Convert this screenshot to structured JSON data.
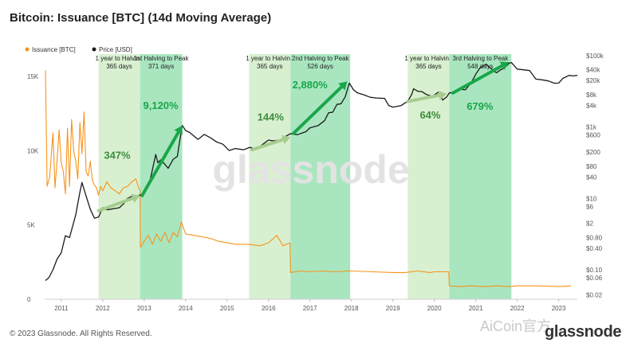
{
  "page": {
    "title": "Bitcoin: Issuance [BTC] (14d Moving Average)",
    "footer": "© 2023 Glassnode. All Rights Reserved.",
    "logo": "glassnode",
    "watermark": "glassnode",
    "corner_watermark": "AiCoin官方"
  },
  "colors": {
    "issuance": "#f7931a",
    "price": "#1a1a1a",
    "pre_halving_band": "#d8f0d0",
    "post_halving_band": "#a9e6c0",
    "arrow_light": "#a6cc8f",
    "arrow_dark": "#1aa64a",
    "pct_light": "#3c8c3c",
    "pct_dark": "#1aa64a"
  },
  "chart_data": {
    "type": "line",
    "legend": [
      {
        "label": "Issuance [BTC]",
        "color": "#f7931a"
      },
      {
        "label": "Price [USD]",
        "color": "#1a1a1a"
      }
    ],
    "legend_position": "top-left",
    "xlim": [
      2010.6,
      2023.45
    ],
    "x_ticks": [
      "2011",
      "2012",
      "2013",
      "2014",
      "2015",
      "2016",
      "2017",
      "2018",
      "2019",
      "2020",
      "2021",
      "2022",
      "2023"
    ],
    "y_left": {
      "label": "",
      "ylim": [
        0,
        16500
      ],
      "ticks": [
        0,
        5000,
        10000,
        15000
      ],
      "tick_labels": [
        "0",
        "5K",
        "10K",
        "15K"
      ]
    },
    "y_right": {
      "label": "",
      "scale": "log",
      "ylim": [
        0.015,
        110000
      ],
      "ticks": [
        100000,
        40000,
        20000,
        8000,
        4000,
        1000,
        600,
        200,
        80,
        40,
        10,
        6,
        2,
        0.8,
        0.4,
        0.1,
        0.06,
        0.02
      ],
      "tick_labels": [
        "$100k",
        "$40k",
        "$20k",
        "$8k",
        "$4k",
        "$1k",
        "$600",
        "$200",
        "$80",
        "$40",
        "$10",
        "$6",
        "$2",
        "$0.80",
        "$0.40",
        "$0.10",
        "$0.06",
        "$0.02"
      ]
    },
    "grid": false,
    "bands": [
      {
        "x0": 2011.9,
        "x1": 2012.9,
        "kind": "pre",
        "title": "1 year to Halving",
        "subtitle": "365 days"
      },
      {
        "x0": 2012.9,
        "x1": 2013.92,
        "kind": "post",
        "title": "1st Halving to Peak",
        "subtitle": "371 days"
      },
      {
        "x0": 2015.53,
        "x1": 2016.53,
        "kind": "pre",
        "title": "1 year to Halving",
        "subtitle": "365 days"
      },
      {
        "x0": 2016.53,
        "x1": 2017.97,
        "kind": "post",
        "title": "2nd Halving to Peak",
        "subtitle": "526 days"
      },
      {
        "x0": 2019.36,
        "x1": 2020.36,
        "kind": "pre",
        "title": "1 year to Halving",
        "subtitle": "365 days"
      },
      {
        "x0": 2020.36,
        "x1": 2021.86,
        "kind": "post",
        "title": "3rd Halving to Peak",
        "subtitle": "548 days"
      }
    ],
    "annotations": [
      {
        "text": "347%",
        "kind": "pre",
        "x": 2012.35,
        "price": 130
      },
      {
        "text": "9,120%",
        "kind": "post",
        "x": 2013.4,
        "price": 3200
      },
      {
        "text": "144%",
        "kind": "pre",
        "x": 2016.05,
        "price": 1500
      },
      {
        "text": "2,880%",
        "kind": "post",
        "x": 2017.0,
        "price": 12000
      },
      {
        "text": "64%",
        "kind": "pre",
        "x": 2019.9,
        "price": 1700
      },
      {
        "text": "679%",
        "kind": "post",
        "x": 2021.1,
        "price": 3000
      }
    ],
    "arrows": [
      {
        "kind": "pre",
        "x0": 2011.9,
        "p0": 4.5,
        "x1": 2012.9,
        "p1": 12
      },
      {
        "kind": "post",
        "x0": 2012.95,
        "p0": 12,
        "x1": 2013.92,
        "p1": 1100
      },
      {
        "kind": "pre",
        "x0": 2015.6,
        "p0": 230,
        "x1": 2016.53,
        "p1": 520
      },
      {
        "kind": "post",
        "x0": 2016.6,
        "p0": 660,
        "x1": 2017.9,
        "p1": 19000
      },
      {
        "kind": "pre",
        "x0": 2019.36,
        "p0": 5200,
        "x1": 2020.3,
        "p1": 8500
      },
      {
        "kind": "post",
        "x0": 2020.45,
        "p0": 9000,
        "x1": 2021.8,
        "p1": 66000
      }
    ],
    "series": [
      {
        "name": "Issuance [BTC]",
        "axis": "left",
        "points": [
          [
            2010.62,
            15400
          ],
          [
            2010.66,
            7600
          ],
          [
            2010.72,
            8200
          ],
          [
            2010.8,
            11200
          ],
          [
            2010.85,
            7500
          ],
          [
            2010.9,
            9400
          ],
          [
            2010.95,
            11400
          ],
          [
            2011.0,
            9200
          ],
          [
            2011.05,
            8600
          ],
          [
            2011.1,
            7100
          ],
          [
            2011.15,
            11500
          ],
          [
            2011.2,
            7600
          ],
          [
            2011.25,
            12100
          ],
          [
            2011.3,
            10000
          ],
          [
            2011.35,
            9300
          ],
          [
            2011.4,
            8100
          ],
          [
            2011.45,
            11900
          ],
          [
            2011.5,
            9800
          ],
          [
            2011.55,
            12600
          ],
          [
            2011.6,
            8600
          ],
          [
            2011.65,
            8300
          ],
          [
            2011.7,
            9300
          ],
          [
            2011.75,
            8000
          ],
          [
            2011.8,
            7700
          ],
          [
            2011.85,
            7500
          ],
          [
            2011.9,
            7000
          ],
          [
            2011.95,
            7600
          ],
          [
            2012.0,
            7300
          ],
          [
            2012.1,
            7900
          ],
          [
            2012.2,
            7500
          ],
          [
            2012.3,
            7300
          ],
          [
            2012.4,
            7100
          ],
          [
            2012.5,
            7500
          ],
          [
            2012.6,
            7600
          ],
          [
            2012.7,
            7900
          ],
          [
            2012.8,
            8100
          ],
          [
            2012.87,
            7500
          ],
          [
            2012.9,
            7300
          ],
          [
            2012.91,
            3500
          ],
          [
            2013.0,
            3900
          ],
          [
            2013.1,
            4300
          ],
          [
            2013.2,
            3700
          ],
          [
            2013.3,
            4400
          ],
          [
            2013.4,
            3900
          ],
          [
            2013.5,
            4500
          ],
          [
            2013.6,
            3800
          ],
          [
            2013.7,
            4500
          ],
          [
            2013.8,
            4200
          ],
          [
            2013.9,
            5200
          ],
          [
            2014.0,
            4400
          ],
          [
            2014.2,
            4300
          ],
          [
            2014.4,
            4200
          ],
          [
            2014.6,
            4100
          ],
          [
            2014.8,
            3900
          ],
          [
            2015.0,
            3800
          ],
          [
            2015.2,
            3700
          ],
          [
            2015.5,
            3700
          ],
          [
            2015.8,
            3600
          ],
          [
            2016.0,
            3800
          ],
          [
            2016.2,
            4300
          ],
          [
            2016.35,
            3600
          ],
          [
            2016.52,
            3800
          ],
          [
            2016.53,
            1800
          ],
          [
            2016.8,
            1900
          ],
          [
            2017.0,
            1850
          ],
          [
            2017.3,
            1900
          ],
          [
            2017.6,
            1850
          ],
          [
            2017.9,
            1900
          ],
          [
            2018.0,
            1900
          ],
          [
            2018.5,
            1850
          ],
          [
            2019.0,
            1800
          ],
          [
            2019.3,
            1800
          ],
          [
            2019.6,
            1900
          ],
          [
            2019.9,
            1800
          ],
          [
            2020.0,
            1850
          ],
          [
            2020.2,
            1850
          ],
          [
            2020.35,
            1850
          ],
          [
            2020.36,
            900
          ],
          [
            2020.6,
            850
          ],
          [
            2020.9,
            900
          ],
          [
            2021.2,
            850
          ],
          [
            2021.5,
            900
          ],
          [
            2021.8,
            850
          ],
          [
            2022.0,
            900
          ],
          [
            2022.5,
            900
          ],
          [
            2023.0,
            850
          ],
          [
            2023.3,
            900
          ]
        ]
      },
      {
        "name": "Price [USD]",
        "axis": "right",
        "points": [
          [
            2010.62,
            0.05
          ],
          [
            2010.7,
            0.06
          ],
          [
            2010.8,
            0.1
          ],
          [
            2010.9,
            0.2
          ],
          [
            2011.0,
            0.3
          ],
          [
            2011.1,
            0.9
          ],
          [
            2011.2,
            0.8
          ],
          [
            2011.35,
            3.5
          ],
          [
            2011.45,
            15
          ],
          [
            2011.5,
            28
          ],
          [
            2011.58,
            14
          ],
          [
            2011.7,
            5
          ],
          [
            2011.8,
            2.8
          ],
          [
            2011.9,
            3
          ],
          [
            2012.0,
            5.5
          ],
          [
            2012.1,
            4.8
          ],
          [
            2012.2,
            5
          ],
          [
            2012.4,
            5.5
          ],
          [
            2012.5,
            7
          ],
          [
            2012.6,
            10
          ],
          [
            2012.7,
            11.5
          ],
          [
            2012.8,
            11
          ],
          [
            2012.9,
            12.5
          ],
          [
            2013.0,
            13.5
          ],
          [
            2013.15,
            35
          ],
          [
            2013.28,
            170
          ],
          [
            2013.33,
            100
          ],
          [
            2013.4,
            120
          ],
          [
            2013.5,
            90
          ],
          [
            2013.58,
            70
          ],
          [
            2013.7,
            125
          ],
          [
            2013.8,
            150
          ],
          [
            2013.87,
            500
          ],
          [
            2013.92,
            1100
          ],
          [
            2014.0,
            800
          ],
          [
            2014.1,
            700
          ],
          [
            2014.3,
            450
          ],
          [
            2014.45,
            620
          ],
          [
            2014.6,
            500
          ],
          [
            2014.75,
            380
          ],
          [
            2014.9,
            330
          ],
          [
            2015.05,
            220
          ],
          [
            2015.2,
            250
          ],
          [
            2015.4,
            230
          ],
          [
            2015.55,
            270
          ],
          [
            2015.7,
            235
          ],
          [
            2015.85,
            320
          ],
          [
            2016.0,
            430
          ],
          [
            2016.1,
            410
          ],
          [
            2016.3,
            440
          ],
          [
            2016.45,
            580
          ],
          [
            2016.53,
            650
          ],
          [
            2016.7,
            610
          ],
          [
            2016.9,
            740
          ],
          [
            2017.0,
            950
          ],
          [
            2017.2,
            1100
          ],
          [
            2017.35,
            1500
          ],
          [
            2017.45,
            2500
          ],
          [
            2017.55,
            2600
          ],
          [
            2017.65,
            4300
          ],
          [
            2017.75,
            4500
          ],
          [
            2017.85,
            7000
          ],
          [
            2017.95,
            17000
          ],
          [
            2018.05,
            11000
          ],
          [
            2018.15,
            9000
          ],
          [
            2018.3,
            8000
          ],
          [
            2018.45,
            6800
          ],
          [
            2018.6,
            6500
          ],
          [
            2018.8,
            6300
          ],
          [
            2018.9,
            4000
          ],
          [
            2019.0,
            3600
          ],
          [
            2019.2,
            4000
          ],
          [
            2019.36,
            5300
          ],
          [
            2019.45,
            8000
          ],
          [
            2019.5,
            11800
          ],
          [
            2019.6,
            10000
          ],
          [
            2019.7,
            9800
          ],
          [
            2019.8,
            8200
          ],
          [
            2019.95,
            7200
          ],
          [
            2020.1,
            9500
          ],
          [
            2020.2,
            5700
          ],
          [
            2020.3,
            7000
          ],
          [
            2020.36,
            9000
          ],
          [
            2020.5,
            9400
          ],
          [
            2020.6,
            11500
          ],
          [
            2020.75,
            11000
          ],
          [
            2020.9,
            18000
          ],
          [
            2021.0,
            30000
          ],
          [
            2021.1,
            45000
          ],
          [
            2021.25,
            58000
          ],
          [
            2021.4,
            40000
          ],
          [
            2021.5,
            33000
          ],
          [
            2021.6,
            40000
          ],
          [
            2021.7,
            46000
          ],
          [
            2021.8,
            61000
          ],
          [
            2021.86,
            64000
          ],
          [
            2022.0,
            42000
          ],
          [
            2022.15,
            40000
          ],
          [
            2022.3,
            38000
          ],
          [
            2022.45,
            22000
          ],
          [
            2022.6,
            21000
          ],
          [
            2022.75,
            19500
          ],
          [
            2022.9,
            16800
          ],
          [
            2023.0,
            17000
          ],
          [
            2023.1,
            23000
          ],
          [
            2023.25,
            28000
          ],
          [
            2023.35,
            27000
          ],
          [
            2023.45,
            28000
          ]
        ]
      }
    ]
  }
}
